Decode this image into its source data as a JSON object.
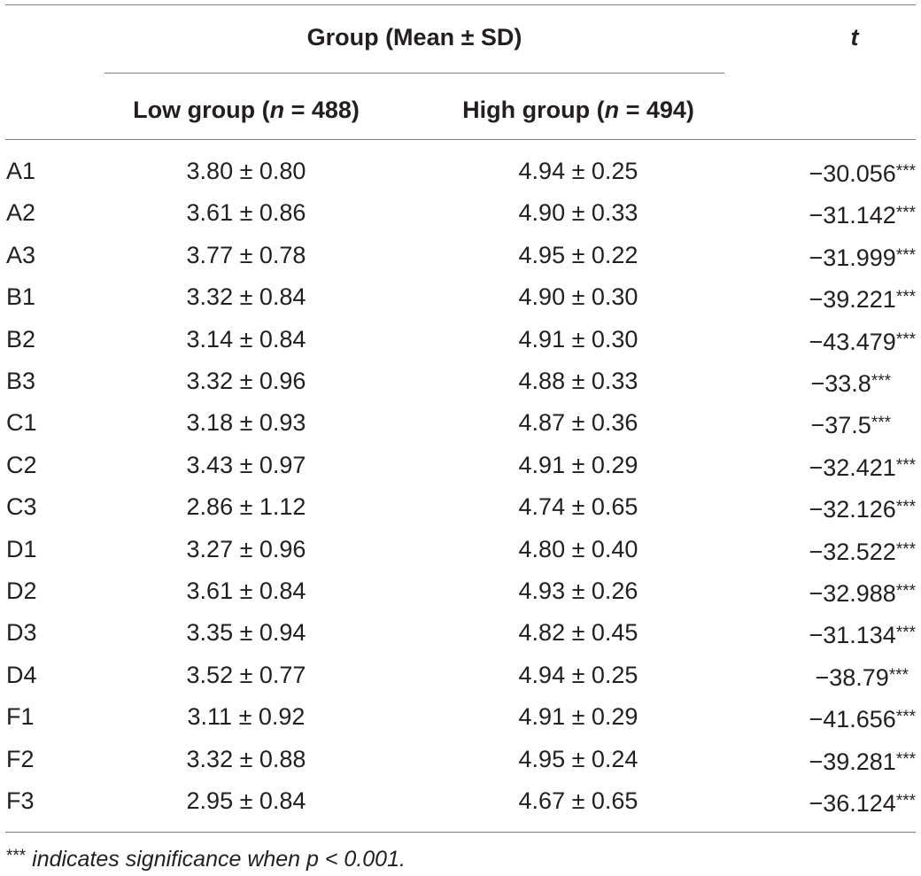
{
  "header": {
    "group_title": "Group (Mean ± SD)",
    "t_label": "t",
    "low_prefix": "Low group (",
    "low_n_symbol": "n",
    "low_suffix": " = 488)",
    "high_prefix": "High group (",
    "high_n_symbol": "n",
    "high_suffix": " = 494)"
  },
  "rows": [
    {
      "label": "A1",
      "low": "3.80 ± 0.80",
      "high": "4.94 ± 0.25",
      "t": "−30.056",
      "sig": "***"
    },
    {
      "label": "A2",
      "low": "3.61 ± 0.86",
      "high": "4.90 ± 0.33",
      "t": "−31.142",
      "sig": "***"
    },
    {
      "label": "A3",
      "low": "3.77 ± 0.78",
      "high": "4.95 ± 0.22",
      "t": "−31.999",
      "sig": "***"
    },
    {
      "label": "B1",
      "low": "3.32 ± 0.84",
      "high": "4.90 ± 0.30",
      "t": "−39.221",
      "sig": "***"
    },
    {
      "label": "B2",
      "low": "3.14 ± 0.84",
      "high": "4.91 ± 0.30",
      "t": "−43.479",
      "sig": "***"
    },
    {
      "label": "B3",
      "low": "3.32 ± 0.96",
      "high": "4.88 ± 0.33",
      "t": "−33.8",
      "sig": "***"
    },
    {
      "label": "C1",
      "low": "3.18 ± 0.93",
      "high": "4.87 ± 0.36",
      "t": "−37.5",
      "sig": "***"
    },
    {
      "label": "C2",
      "low": "3.43 ± 0.97",
      "high": "4.91 ± 0.29",
      "t": "−32.421",
      "sig": "***"
    },
    {
      "label": "C3",
      "low": "2.86 ± 1.12",
      "high": "4.74 ± 0.65",
      "t": "−32.126",
      "sig": "***"
    },
    {
      "label": "D1",
      "low": "3.27 ± 0.96",
      "high": "4.80 ± 0.40",
      "t": "−32.522",
      "sig": "***"
    },
    {
      "label": "D2",
      "low": "3.61 ± 0.84",
      "high": "4.93 ± 0.26",
      "t": "−32.988",
      "sig": "***"
    },
    {
      "label": "D3",
      "low": "3.35 ± 0.94",
      "high": "4.82 ± 0.45",
      "t": "−31.134",
      "sig": "***"
    },
    {
      "label": "D4",
      "low": "3.52 ± 0.77",
      "high": "4.94 ± 0.25",
      "t": "−38.79",
      "sig": "***"
    },
    {
      "label": "F1",
      "low": "3.11 ± 0.92",
      "high": "4.91 ± 0.29",
      "t": "−41.656",
      "sig": "***"
    },
    {
      "label": "F2",
      "low": "3.32 ± 0.88",
      "high": "4.95 ± 0.24",
      "t": "−39.281",
      "sig": "***"
    },
    {
      "label": "F3",
      "low": "2.95 ± 0.84",
      "high": "4.67 ± 0.65",
      "t": "−36.124",
      "sig": "***"
    }
  ],
  "footnote": {
    "stars": "***",
    "text": " indicates significance when p < 0.001."
  }
}
